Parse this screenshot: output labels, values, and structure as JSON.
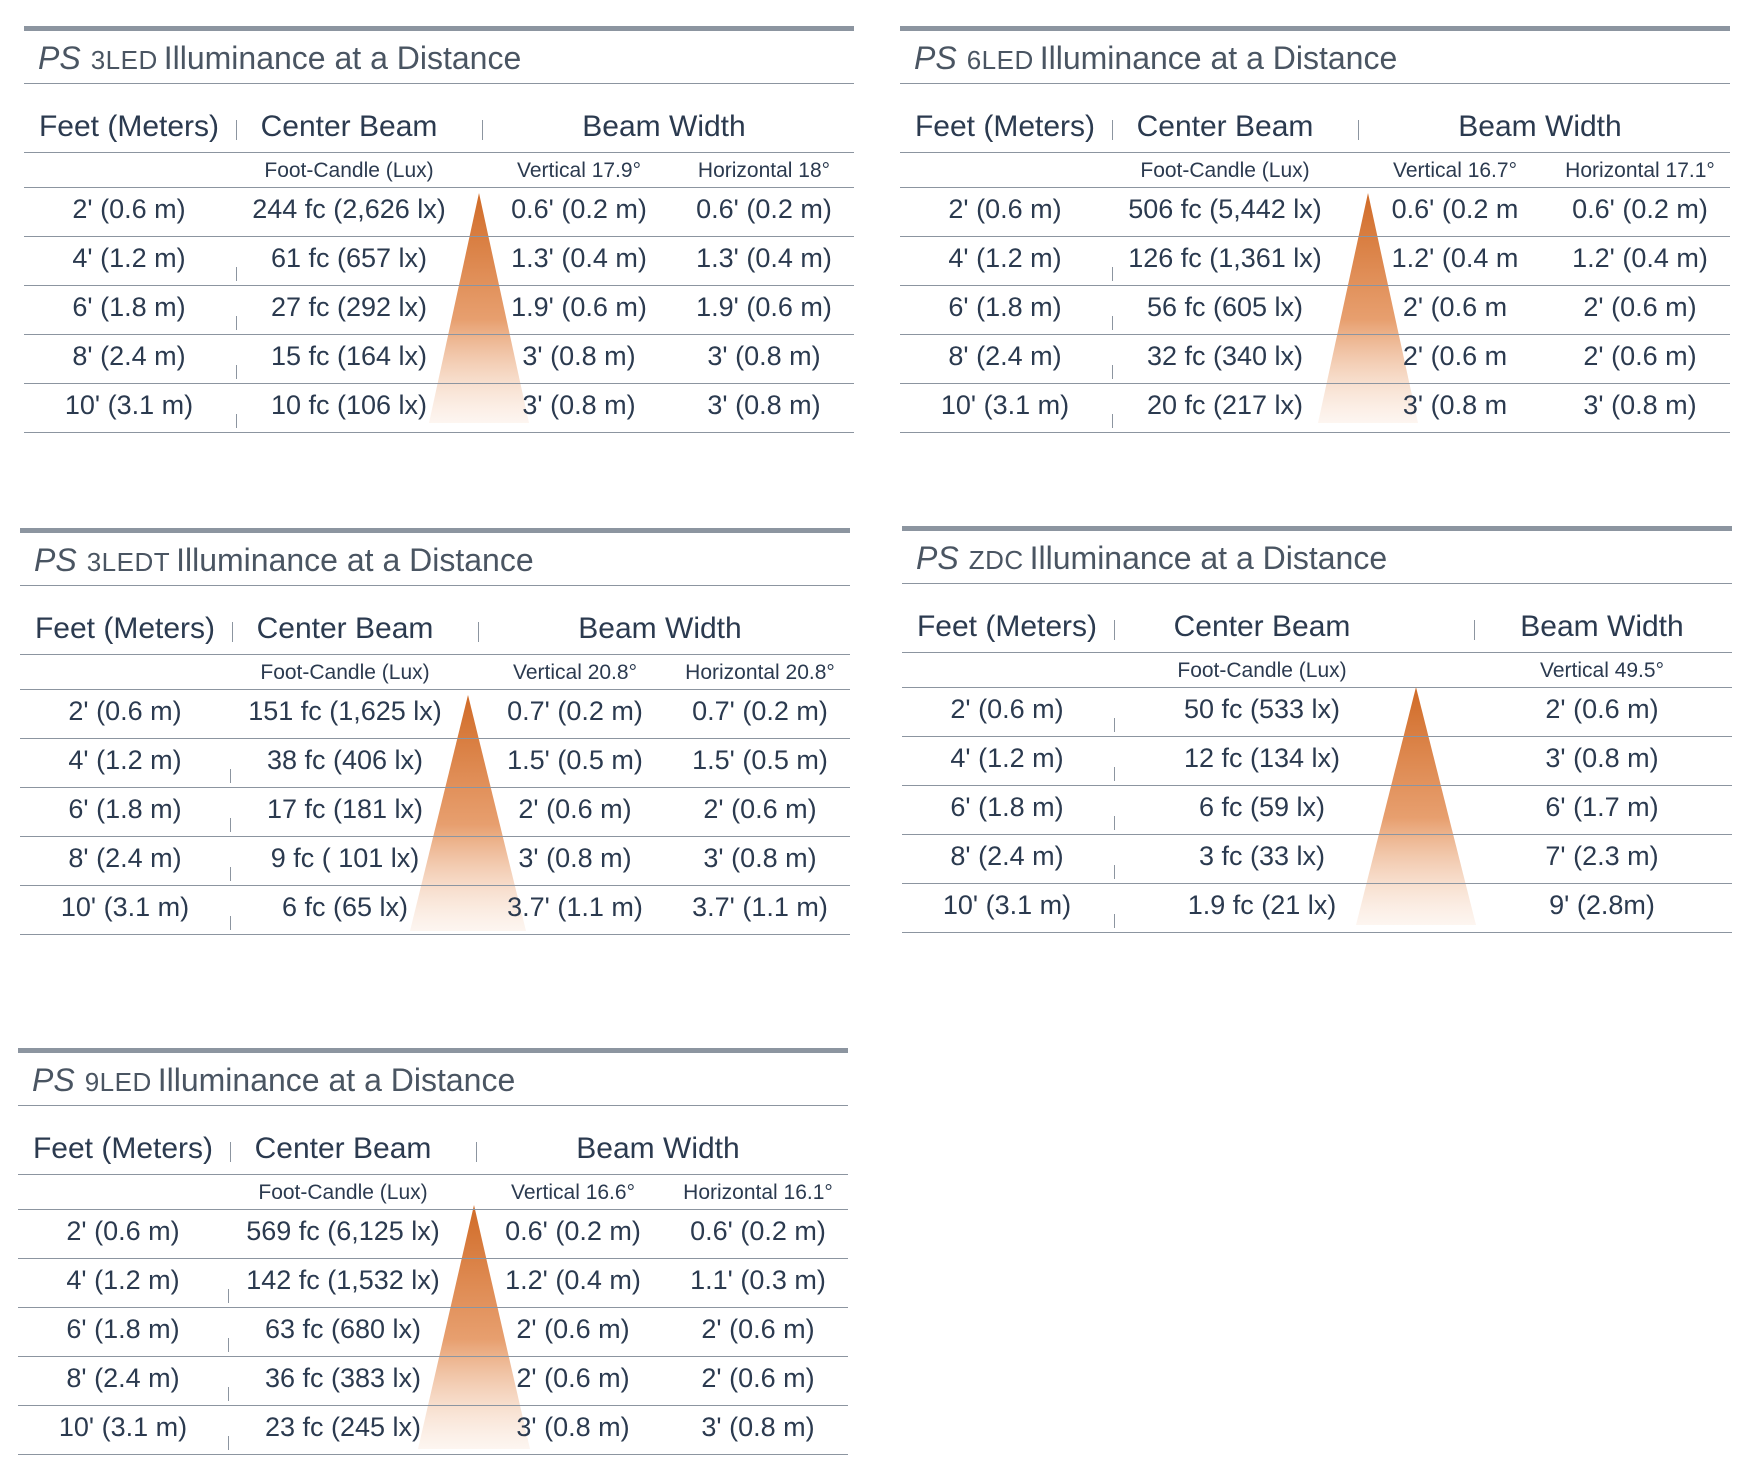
{
  "tables": [
    {
      "brand": "PS",
      "model": "3LED",
      "title_suffix": "Illuminance at a Distance",
      "headers": {
        "distance": "Feet (Meters)",
        "center_beam": "Center Beam",
        "beam_width": "Beam Width"
      },
      "subheaders": {
        "center_beam": "Foot-Candle (Lux)",
        "vertical": "Vertical 17.9°",
        "horizontal": "Horizontal 18°"
      },
      "rows": [
        [
          "2' (0.6 m)",
          "244 fc (2,626 lx)",
          "0.6' (0.2 m)",
          "0.6' (0.2 m)"
        ],
        [
          "4' (1.2 m)",
          "61 fc (657 lx)",
          "1.3' (0.4 m)",
          "1.3' (0.4 m)"
        ],
        [
          "6' (1.8 m)",
          "27 fc (292 lx)",
          "1.9' (0.6 m)",
          "1.9' (0.6 m)"
        ],
        [
          "8' (2.4 m)",
          "15 fc (164 lx)",
          "3' (0.8 m)",
          "3' (0.8 m)"
        ],
        [
          "10' (3.1 m)",
          "10 fc (106 lx)",
          "3' (0.8 m)",
          "3' (0.8 m)"
        ]
      ]
    },
    {
      "brand": "PS",
      "model": "6LED",
      "title_suffix": "Illuminance at a Distance",
      "headers": {
        "distance": "Feet (Meters)",
        "center_beam": "Center Beam",
        "beam_width": "Beam Width"
      },
      "subheaders": {
        "center_beam": "Foot-Candle (Lux)",
        "vertical": "Vertical 16.7°",
        "horizontal": "Horizontal 17.1°"
      },
      "rows": [
        [
          "2' (0.6 m)",
          "506 fc (5,442 lx)",
          "0.6' (0.2 m",
          "0.6' (0.2 m)"
        ],
        [
          "4' (1.2 m)",
          "126 fc (1,361 lx)",
          "1.2' (0.4 m",
          "1.2' (0.4 m)"
        ],
        [
          "6' (1.8 m)",
          "56 fc (605 lx)",
          "2' (0.6 m",
          "2' (0.6 m)"
        ],
        [
          "8' (2.4 m)",
          "32 fc (340 lx)",
          "2' (0.6 m",
          "2' (0.6 m)"
        ],
        [
          "10' (3.1 m)",
          "20 fc (217 lx)",
          "3' (0.8 m",
          "3' (0.8 m)"
        ]
      ]
    },
    {
      "brand": "PS",
      "model": "3LEDT",
      "title_suffix": "Illuminance at a Distance",
      "headers": {
        "distance": "Feet (Meters)",
        "center_beam": "Center Beam",
        "beam_width": "Beam Width"
      },
      "subheaders": {
        "center_beam": "Foot-Candle (Lux)",
        "vertical": "Vertical 20.8°",
        "horizontal": "Horizontal 20.8°"
      },
      "rows": [
        [
          "2' (0.6 m)",
          "151 fc (1,625 lx)",
          "0.7' (0.2 m)",
          "0.7' (0.2 m)"
        ],
        [
          "4' (1.2 m)",
          "38 fc (406 lx)",
          "1.5' (0.5 m)",
          "1.5' (0.5 m)"
        ],
        [
          "6' (1.8 m)",
          "17 fc (181 lx)",
          "2' (0.6 m)",
          "2' (0.6 m)"
        ],
        [
          "8' (2.4 m)",
          "9 fc ( 101 lx)",
          "3' (0.8 m)",
          "3' (0.8 m)"
        ],
        [
          "10' (3.1 m)",
          "6 fc (65 lx)",
          "3.7' (1.1 m)",
          "3.7' (1.1 m)"
        ]
      ]
    },
    {
      "brand": "PS",
      "model": "ZDC",
      "title_suffix": "Illuminance at a Distance",
      "headers": {
        "distance": "Feet (Meters)",
        "center_beam": "Center Beam",
        "beam_width": "Beam Width"
      },
      "subheaders": {
        "center_beam": "Foot-Candle (Lux)",
        "vertical": "Vertical 49.5°",
        "horizontal": ""
      },
      "rows": [
        [
          "2' (0.6 m)",
          "50 fc (533 lx)",
          "2' (0.6 m)",
          ""
        ],
        [
          "4' (1.2 m)",
          "12 fc (134 lx)",
          "3' (0.8 m)",
          ""
        ],
        [
          "6' (1.8 m)",
          "6 fc (59 lx)",
          "6' (1.7 m)",
          ""
        ],
        [
          "8' (2.4 m)",
          "3 fc (33 lx)",
          "7' (2.3 m)",
          ""
        ],
        [
          "10' (3.1 m)",
          "1.9 fc (21 lx)",
          "9' (2.8m)",
          ""
        ]
      ]
    },
    {
      "brand": "PS",
      "model": "9LED",
      "title_suffix": "Illuminance at a Distance",
      "headers": {
        "distance": "Feet (Meters)",
        "center_beam": "Center Beam",
        "beam_width": "Beam Width"
      },
      "subheaders": {
        "center_beam": "Foot-Candle (Lux)",
        "vertical": "Vertical 16.6°",
        "horizontal": "Horizontal 16.1°"
      },
      "rows": [
        [
          "2' (0.6 m)",
          "569 fc (6,125 lx)",
          "0.6' (0.2 m)",
          "0.6' (0.2 m)"
        ],
        [
          "4' (1.2 m)",
          "142 fc (1,532 lx)",
          "1.2' (0.4 m)",
          "1.1' (0.3 m)"
        ],
        [
          "6' (1.8 m)",
          "63 fc (680 lx)",
          "2' (0.6 m)",
          "2' (0.6 m)"
        ],
        [
          "8' (2.4 m)",
          "36 fc (383 lx)",
          "2' (0.6 m)",
          "2' (0.6 m)"
        ],
        [
          "10' (3.1 m)",
          "23 fc (245 lx)",
          "3' (0.8 m)",
          "3' (0.8 m)"
        ]
      ]
    }
  ],
  "colors": {
    "rule": "#8c95a0",
    "text": "#2b3a4f",
    "beam": "#d06a26"
  }
}
